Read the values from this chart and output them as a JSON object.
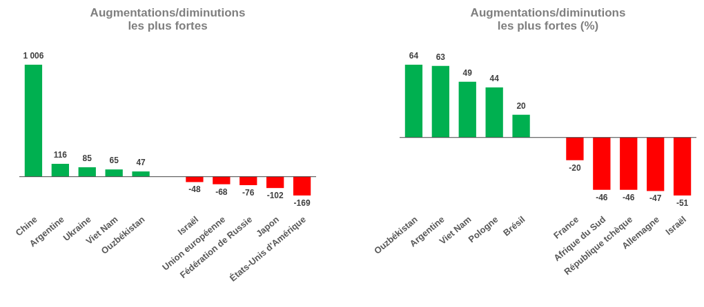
{
  "chart_data": [
    {
      "type": "bar",
      "title": "Augmentations/diminutions les plus fortes",
      "categories": [
        "Chine",
        "Argentine",
        "Ukraine",
        "Viet Nam",
        "Ouzbékistan",
        null,
        "Israël",
        "Union européenne",
        "Fédération de Russie",
        "Japon",
        "États-Unis d'Amérique"
      ],
      "values": [
        1006,
        116,
        85,
        65,
        47,
        null,
        -48,
        -68,
        -76,
        -102,
        -169
      ],
      "colors": [
        "#00b050",
        "#00b050",
        "#00b050",
        "#00b050",
        "#00b050",
        null,
        "#ff0000",
        "#ff0000",
        "#ff0000",
        "#ff0000",
        "#ff0000"
      ],
      "value_labels": [
        "1 006",
        "116",
        "85",
        "65",
        "47",
        null,
        "-48",
        "-68",
        "-76",
        "-102",
        "-169"
      ]
    },
    {
      "type": "bar",
      "title": "Augmentations/diminutions les plus fortes (%)",
      "categories": [
        "Ouzbékistan",
        "Argentine",
        "Viet Nam",
        "Pologne",
        "Brésil",
        null,
        "France",
        "Afrique du Sud",
        "République tchèque",
        "Allemagne",
        "Israël"
      ],
      "values": [
        64,
        63,
        49,
        44,
        20,
        null,
        -20,
        -46,
        -46,
        -47,
        -51
      ],
      "colors": [
        "#00b050",
        "#00b050",
        "#00b050",
        "#00b050",
        "#00b050",
        null,
        "#ff0000",
        "#ff0000",
        "#ff0000",
        "#ff0000",
        "#ff0000"
      ],
      "data_labels": true
    }
  ]
}
